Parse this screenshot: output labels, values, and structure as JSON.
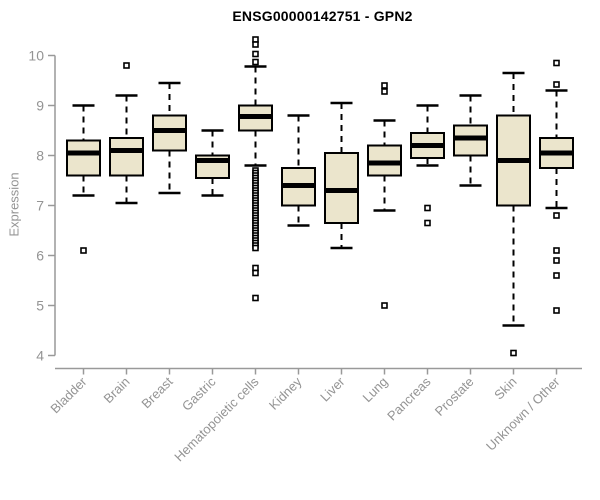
{
  "chart_data": {
    "type": "boxplot",
    "title": "ENSG00000142751 - GPN2",
    "ylabel": "Expression",
    "xlabel": "",
    "ylim": [
      4,
      10
    ],
    "yticks": [
      4,
      5,
      6,
      7,
      8,
      9,
      10
    ],
    "grid": false,
    "legend": "none",
    "categories": [
      "Bladder",
      "Brain",
      "Breast",
      "Gastric",
      "Hematopoietic cells",
      "Kidney",
      "Liver",
      "Lung",
      "Pancreas",
      "Prostate",
      "Skin",
      "Unknown / Other"
    ],
    "series": [
      {
        "name": "Bladder",
        "whisker_low": 7.2,
        "q1": 7.6,
        "median": 8.05,
        "q3": 8.3,
        "whisker_high": 9.0,
        "outliers": [
          6.1
        ]
      },
      {
        "name": "Brain",
        "whisker_low": 7.05,
        "q1": 7.6,
        "median": 8.1,
        "q3": 8.35,
        "whisker_high": 9.2,
        "outliers": [
          9.8
        ]
      },
      {
        "name": "Breast",
        "whisker_low": 7.25,
        "q1": 8.1,
        "median": 8.5,
        "q3": 8.8,
        "whisker_high": 9.45,
        "outliers": []
      },
      {
        "name": "Gastric",
        "whisker_low": 7.2,
        "q1": 7.55,
        "median": 7.9,
        "q3": 8.0,
        "whisker_high": 8.5,
        "outliers": []
      },
      {
        "name": "Hematopoietic cells",
        "whisker_low": 7.8,
        "q1": 8.5,
        "median": 8.78,
        "q3": 9.0,
        "whisker_high": 9.78,
        "outliers": [
          10.32,
          10.22,
          10.03,
          9.87,
          7.7,
          7.65,
          7.6,
          7.55,
          7.5,
          7.45,
          7.4,
          7.35,
          7.3,
          7.25,
          7.2,
          7.15,
          7.1,
          7.05,
          7.0,
          6.95,
          6.9,
          6.85,
          6.8,
          6.75,
          6.7,
          6.65,
          6.6,
          6.55,
          6.5,
          6.45,
          6.4,
          6.35,
          6.3,
          6.25,
          6.2,
          6.15,
          5.75,
          5.65,
          5.15
        ]
      },
      {
        "name": "Kidney",
        "whisker_low": 6.6,
        "q1": 7.0,
        "median": 7.4,
        "q3": 7.75,
        "whisker_high": 8.8,
        "outliers": []
      },
      {
        "name": "Liver",
        "whisker_low": 6.15,
        "q1": 6.65,
        "median": 7.3,
        "q3": 8.05,
        "whisker_high": 9.05,
        "outliers": []
      },
      {
        "name": "Lung",
        "whisker_low": 6.9,
        "q1": 7.6,
        "median": 7.85,
        "q3": 8.2,
        "whisker_high": 8.7,
        "outliers": [
          9.4,
          9.28,
          5.0
        ]
      },
      {
        "name": "Pancreas",
        "whisker_low": 7.8,
        "q1": 7.95,
        "median": 8.2,
        "q3": 8.45,
        "whisker_high": 9.0,
        "outliers": [
          6.95,
          6.65
        ]
      },
      {
        "name": "Prostate",
        "whisker_low": 7.4,
        "q1": 8.0,
        "median": 8.35,
        "q3": 8.6,
        "whisker_high": 9.2,
        "outliers": []
      },
      {
        "name": "Skin",
        "whisker_low": 4.6,
        "q1": 7.0,
        "median": 7.9,
        "q3": 8.8,
        "whisker_high": 9.65,
        "outliers": [
          4.05
        ]
      },
      {
        "name": "Unknown / Other",
        "whisker_low": 6.95,
        "q1": 7.75,
        "median": 8.05,
        "q3": 8.35,
        "whisker_high": 9.3,
        "outliers": [
          9.85,
          9.42,
          6.8,
          6.1,
          5.9,
          5.6,
          4.9
        ]
      }
    ],
    "style": {
      "box_fill": "#EBE5CC",
      "box_stroke": "#000000",
      "median_color": "#000000",
      "axis_color": "#999999",
      "tick_text_color": "#949494",
      "title_color": "#000000",
      "background": "#FFFFFF"
    }
  }
}
